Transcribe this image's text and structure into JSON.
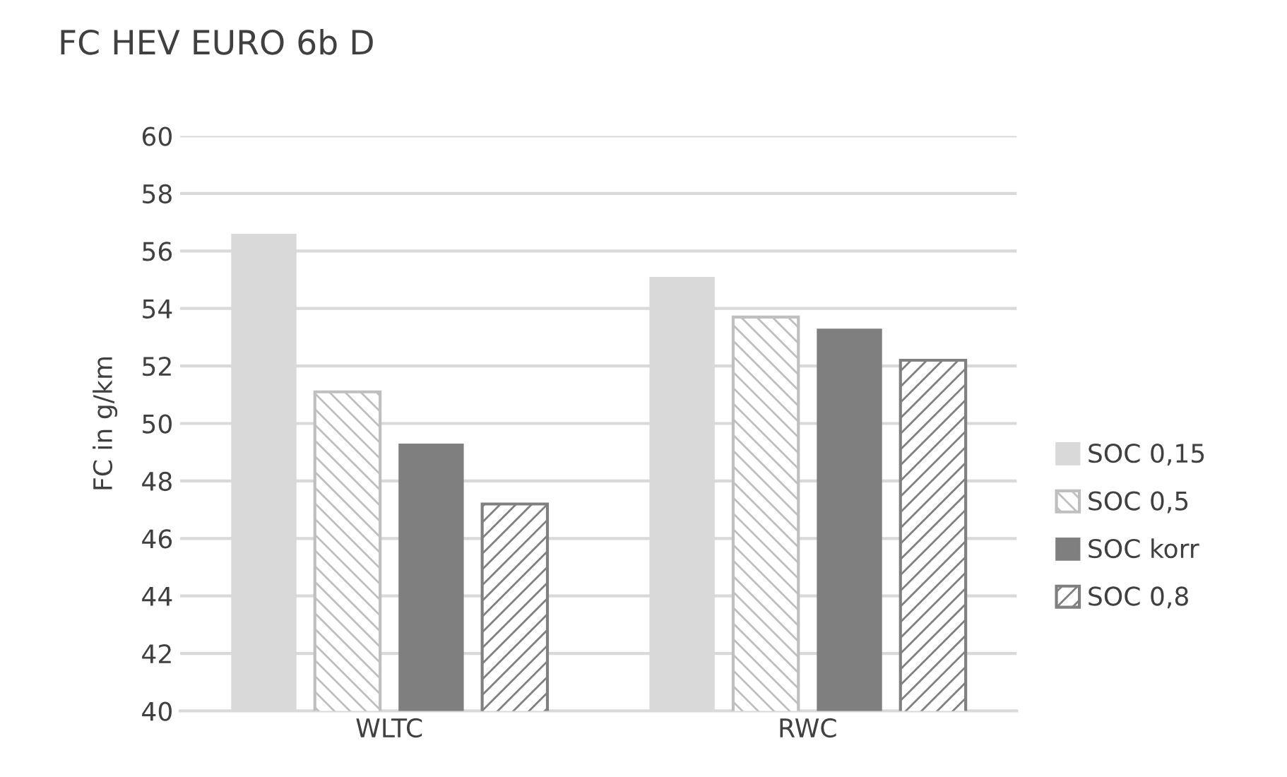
{
  "chart_data": {
    "type": "bar",
    "title": "FC HEV EURO 6b D",
    "ylabel": "FC in g/km",
    "categories": [
      "WLTC",
      "RWC"
    ],
    "series": [
      {
        "name": "SOC 0,15",
        "color": "#d9d9d9",
        "values": [
          56.6,
          55.1
        ]
      },
      {
        "name": "SOC 0,5",
        "color": "#bfbfbf",
        "values": [
          51.1,
          53.7
        ]
      },
      {
        "name": "SOC korr",
        "color": "#7f7f7f",
        "values": [
          49.3,
          53.3
        ]
      },
      {
        "name": "SOC 0,8",
        "color": "#808080",
        "values": [
          47.2,
          52.2
        ]
      }
    ],
    "ylim": [
      40,
      60
    ],
    "yticks": [
      40,
      42,
      44,
      46,
      48,
      50,
      52,
      54,
      56,
      58,
      60
    ],
    "grid": "y",
    "legend": "right"
  }
}
